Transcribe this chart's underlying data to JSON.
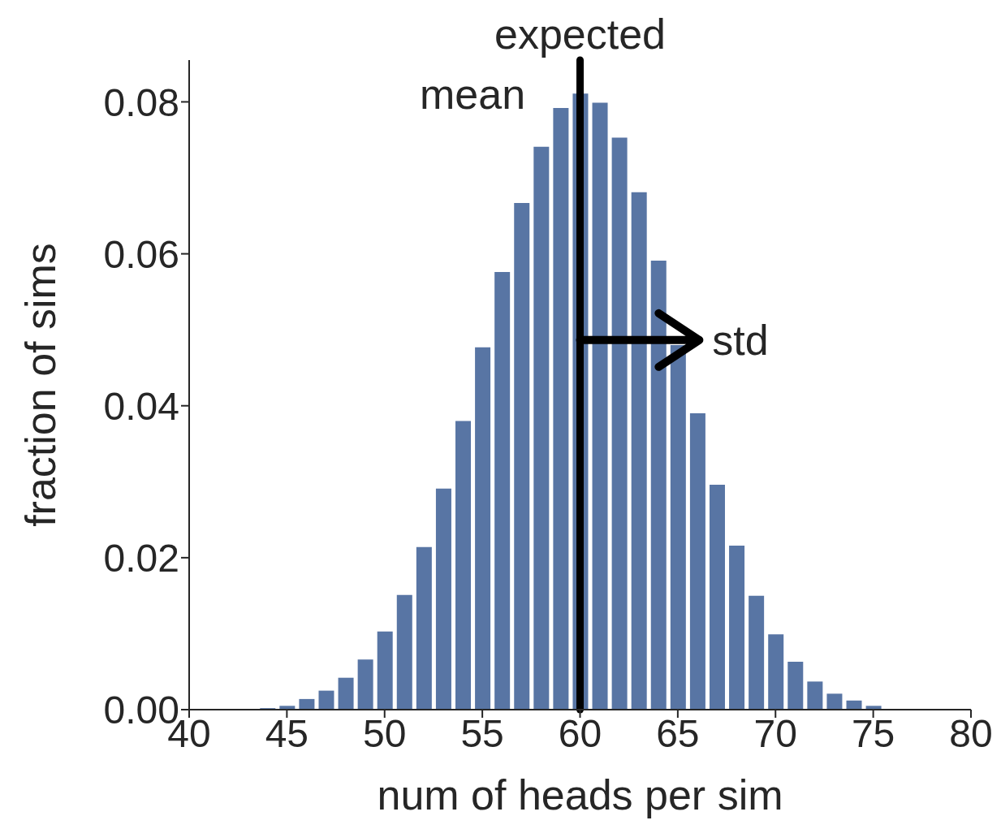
{
  "chart_data": {
    "type": "bar",
    "xlabel": "num of heads per sim",
    "ylabel": "fraction of sims",
    "x": [
      44,
      45,
      46,
      47,
      48,
      49,
      50,
      51,
      52,
      53,
      54,
      55,
      56,
      57,
      58,
      59,
      60,
      61,
      62,
      63,
      64,
      65,
      66,
      67,
      68,
      69,
      70,
      71,
      72,
      73,
      74,
      75
    ],
    "values": [
      0.0002,
      0.0005,
      0.0014,
      0.0025,
      0.0042,
      0.0066,
      0.0103,
      0.0151,
      0.0214,
      0.0291,
      0.038,
      0.0477,
      0.0576,
      0.0667,
      0.0741,
      0.0792,
      0.0811,
      0.0799,
      0.0753,
      0.0681,
      0.0591,
      0.048,
      0.039,
      0.0296,
      0.0216,
      0.015,
      0.0099,
      0.0063,
      0.0037,
      0.0021,
      0.0012,
      0.0005
    ],
    "color": "#5875a4",
    "xlim": [
      40,
      80
    ],
    "xticks": [
      40,
      45,
      50,
      55,
      60,
      65,
      70,
      75,
      80
    ],
    "ylim": [
      0,
      0.0855
    ],
    "yticks": [
      {
        "value": 0,
        "label": "0.00"
      },
      {
        "value": 0.02,
        "label": "0.02"
      },
      {
        "value": 0.04,
        "label": "0.04"
      },
      {
        "value": 0.06,
        "label": "0.06"
      },
      {
        "value": 0.08,
        "label": "0.08"
      }
    ],
    "ref_lines": [
      {
        "axis": "x",
        "value": 60,
        "label": "expected",
        "color": "#000000"
      }
    ],
    "annotations": [
      "mean",
      "std"
    ],
    "grid": false
  }
}
